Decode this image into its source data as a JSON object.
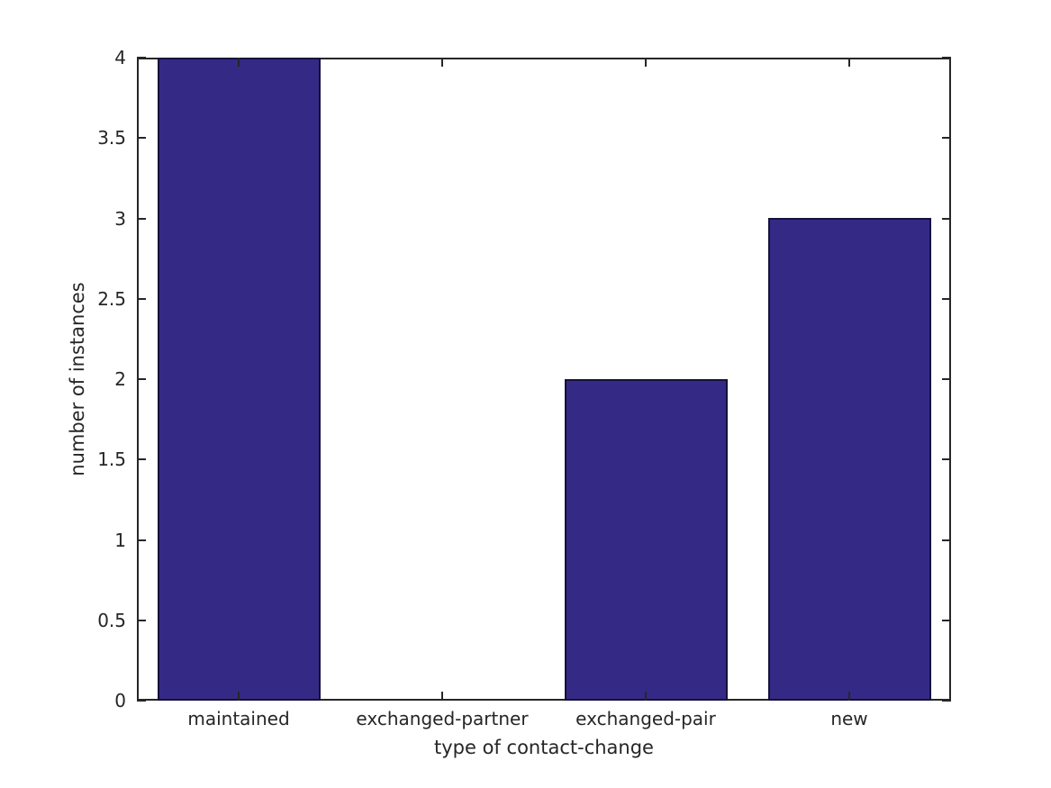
{
  "figure": {
    "background_color": "#ffffff",
    "axis_color": "#262626",
    "text_color": "#262626"
  },
  "chart_data": {
    "type": "bar",
    "title": "",
    "categories": [
      "maintained",
      "exchanged-partner",
      "exchanged-pair",
      "new"
    ],
    "values": [
      4,
      0,
      2,
      3
    ],
    "xlabel": "type of contact-change",
    "ylabel": "number of instances",
    "ylim": [
      0,
      4
    ],
    "ytick_step": 0.5,
    "ytick_labels": [
      "0",
      "0.5",
      "1",
      "1.5",
      "2",
      "2.5",
      "3",
      "3.5",
      "4"
    ],
    "grid": false,
    "legend": null,
    "box": true,
    "tick_direction": "in",
    "bar_color": "#342a86",
    "bar_edge_color": "#15123a",
    "bar_width_fraction": 0.8
  }
}
